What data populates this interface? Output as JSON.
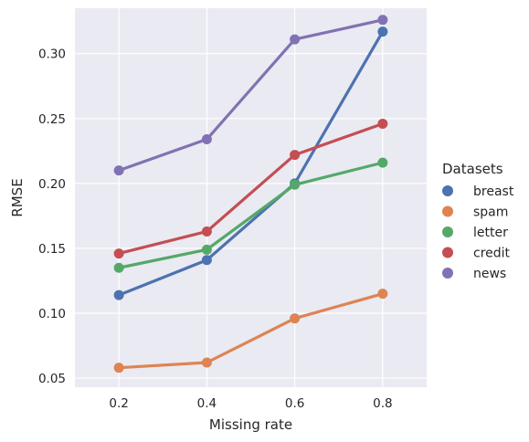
{
  "chart_data": {
    "type": "line",
    "xlabel": "Missing rate",
    "ylabel": "RMSE",
    "categories": [
      "0.2",
      "0.4",
      "0.6",
      "0.8"
    ],
    "ylim": [
      0.043,
      0.335
    ],
    "yticks": [
      0.05,
      0.1,
      0.15,
      0.2,
      0.25,
      0.3
    ],
    "ytick_labels": [
      "0.05",
      "0.10",
      "0.15",
      "0.20",
      "0.25",
      "0.30"
    ],
    "grid": true,
    "background": "#eaeaf2",
    "legend": {
      "title": "Datasets",
      "position": "right"
    },
    "series": [
      {
        "name": "breast",
        "color": "#4c72b0",
        "values": [
          0.114,
          0.141,
          0.2,
          0.317
        ]
      },
      {
        "name": "spam",
        "color": "#dd8452",
        "values": [
          0.058,
          0.062,
          0.096,
          0.115
        ]
      },
      {
        "name": "letter",
        "color": "#55a868",
        "values": [
          0.135,
          0.149,
          0.199,
          0.216
        ]
      },
      {
        "name": "credit",
        "color": "#c44e52",
        "values": [
          0.146,
          0.163,
          0.222,
          0.246
        ]
      },
      {
        "name": "news",
        "color": "#8172b3",
        "values": [
          0.21,
          0.234,
          0.311,
          0.326
        ]
      }
    ]
  }
}
